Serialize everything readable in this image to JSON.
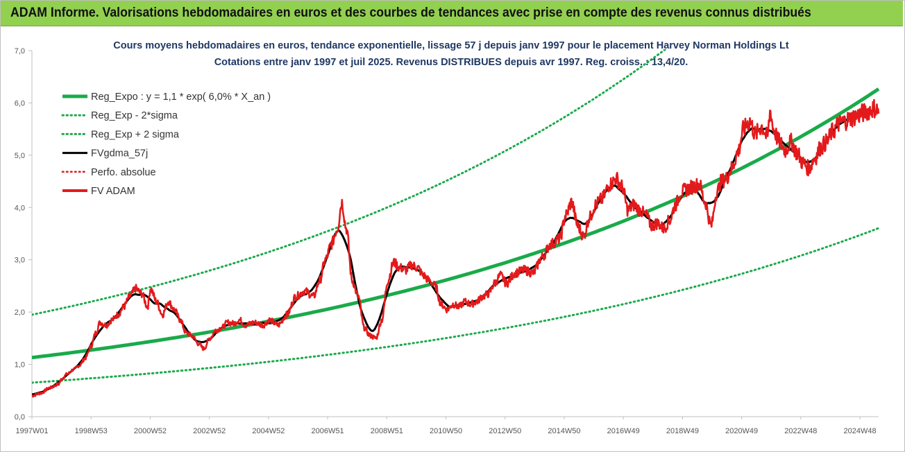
{
  "banner": {
    "text": "ADAM Informe. Valorisations hebdomadaires en euros et des courbes de tendances avec prise en compte des revenus connus distribués",
    "bg_color": "#92d050"
  },
  "chart_data": {
    "type": "line",
    "title": "Cours moyens hebdomadaires en euros, tendance exponentielle, lissage 57 j depuis janv 1997 pour le placement Harvey Norman Holdings Lt",
    "subtitle": "Cotations entre janv 1997 et juil 2025. Revenus DISTRIBUES depuis avr 1997. Reg. croiss. : 13,4/20.",
    "xlabel": "",
    "ylabel": "",
    "ylim": [
      0,
      7
    ],
    "xlim": [
      1997.0,
      2025.55
    ],
    "grid": false,
    "legend_position": "top-left",
    "x_tick_labels": [
      "1997W01",
      "1998W53",
      "2000W52",
      "2002W52",
      "2004W52",
      "2006W51",
      "2008W51",
      "2010W50",
      "2012W50",
      "2014W50",
      "2016W49",
      "2018W49",
      "2020W49",
      "2022W48",
      "2024W48"
    ],
    "y_ticks": [
      0,
      1,
      2,
      3,
      4,
      5,
      6,
      7
    ],
    "y_tick_labels": [
      "0,0",
      "1,0",
      "2,0",
      "3,0",
      "4,0",
      "5,0",
      "6,0",
      "7,0"
    ],
    "series": [
      {
        "name": "Reg_Expo : y = 1,1 * exp( 6,0% *  X_an )",
        "color": "#1aaa4a",
        "style": "solid-thick",
        "kind": "exp",
        "a": 1.13,
        "rate": 0.06
      },
      {
        "name": "Reg_Exp - 2*sigma",
        "color": "#1aaa4a",
        "style": "dotted",
        "kind": "exp",
        "a": 0.65,
        "rate": 0.06
      },
      {
        "name": "Reg_Exp + 2 sigma",
        "color": "#1aaa4a",
        "style": "dotted",
        "kind": "exp",
        "a": 1.95,
        "rate": 0.06
      },
      {
        "name": "FVgdma_57j",
        "color": "#000000",
        "style": "solid"
      },
      {
        "name": "Perfo. absolue",
        "color": "#e31a1c",
        "style": "dotted"
      },
      {
        "name": "FV ADAM",
        "color": "#e31a1c",
        "style": "solid-thick",
        "x": [
          1997.0,
          1997.3,
          1997.6,
          1997.9,
          1998.0,
          1998.2,
          1998.4,
          1998.6,
          1998.8,
          1999.0,
          1999.15,
          1999.3,
          1999.5,
          1999.7,
          1999.9,
          2000.1,
          2000.3,
          2000.5,
          2000.7,
          2000.9,
          2001.0,
          2001.2,
          2001.4,
          2001.6,
          2001.8,
          2002.0,
          2002.2,
          2002.4,
          2002.6,
          2002.8,
          2003.0,
          2003.2,
          2003.4,
          2003.6,
          2003.8,
          2004.0,
          2004.2,
          2004.5,
          2004.8,
          2005.0,
          2005.3,
          2005.6,
          2005.9,
          2006.2,
          2006.5,
          2006.7,
          2006.9,
          2007.1,
          2007.3,
          2007.45,
          2007.6,
          2007.8,
          2008.0,
          2008.2,
          2008.4,
          2008.6,
          2008.8,
          2009.0,
          2009.2,
          2009.4,
          2009.6,
          2009.8,
          2010.0,
          2010.2,
          2010.4,
          2010.6,
          2010.8,
          2011.0,
          2011.2,
          2011.4,
          2011.6,
          2011.8,
          2012.0,
          2012.2,
          2012.4,
          2012.6,
          2012.8,
          2013.0,
          2013.3,
          2013.6,
          2013.9,
          2014.2,
          2014.5,
          2014.8,
          2015.0,
          2015.2,
          2015.4,
          2015.6,
          2015.8,
          2016.0,
          2016.2,
          2016.5,
          2016.7,
          2016.9,
          2017.1,
          2017.3,
          2017.5,
          2017.7,
          2017.9,
          2018.1,
          2018.3,
          2018.5,
          2018.7,
          2018.9,
          2019.1,
          2019.3,
          2019.5,
          2019.7,
          2019.9,
          2020.1,
          2020.25,
          2020.4,
          2020.6,
          2020.8,
          2021.0,
          2021.2,
          2021.4,
          2021.6,
          2021.8,
          2021.9,
          2022.0,
          2022.2,
          2022.4,
          2022.6,
          2022.8,
          2023.0,
          2023.2,
          2023.4,
          2023.6,
          2023.8,
          2024.0,
          2024.2,
          2024.4,
          2024.6,
          2024.8,
          2025.0,
          2025.2,
          2025.4,
          2025.55
        ],
        "values": [
          0.4,
          0.45,
          0.55,
          0.62,
          0.72,
          0.82,
          0.9,
          0.98,
          1.12,
          1.35,
          1.6,
          1.8,
          1.75,
          1.85,
          1.95,
          2.1,
          2.3,
          2.45,
          2.35,
          2.1,
          2.45,
          2.2,
          1.95,
          2.2,
          2.05,
          1.85,
          1.6,
          1.55,
          1.4,
          1.3,
          1.5,
          1.65,
          1.7,
          1.8,
          1.78,
          1.85,
          1.75,
          1.8,
          1.75,
          1.85,
          1.75,
          1.95,
          2.3,
          2.4,
          2.3,
          2.6,
          3.0,
          3.3,
          3.6,
          4.1,
          3.6,
          2.6,
          2.3,
          1.7,
          1.55,
          1.5,
          1.85,
          2.6,
          2.95,
          2.85,
          2.8,
          2.9,
          2.85,
          2.7,
          2.6,
          2.5,
          2.15,
          2.05,
          2.15,
          2.1,
          2.2,
          2.15,
          2.2,
          2.3,
          2.35,
          2.55,
          2.7,
          2.55,
          2.75,
          2.8,
          2.75,
          3.05,
          3.3,
          3.4,
          3.85,
          4.1,
          3.65,
          3.45,
          3.8,
          4.05,
          4.15,
          4.45,
          4.55,
          4.4,
          3.95,
          4.05,
          3.95,
          3.85,
          3.65,
          3.7,
          3.6,
          3.75,
          4.05,
          4.3,
          4.35,
          4.4,
          4.45,
          4.1,
          3.65,
          4.3,
          4.5,
          4.55,
          4.75,
          5.05,
          5.5,
          5.65,
          5.4,
          5.55,
          5.35,
          5.85,
          5.5,
          5.25,
          5.1,
          5.25,
          5.05,
          4.85,
          4.75,
          4.95,
          5.15,
          5.25,
          5.45,
          5.6,
          5.65,
          5.7,
          5.75,
          5.8,
          5.85,
          5.9,
          5.85
        ]
      }
    ]
  }
}
